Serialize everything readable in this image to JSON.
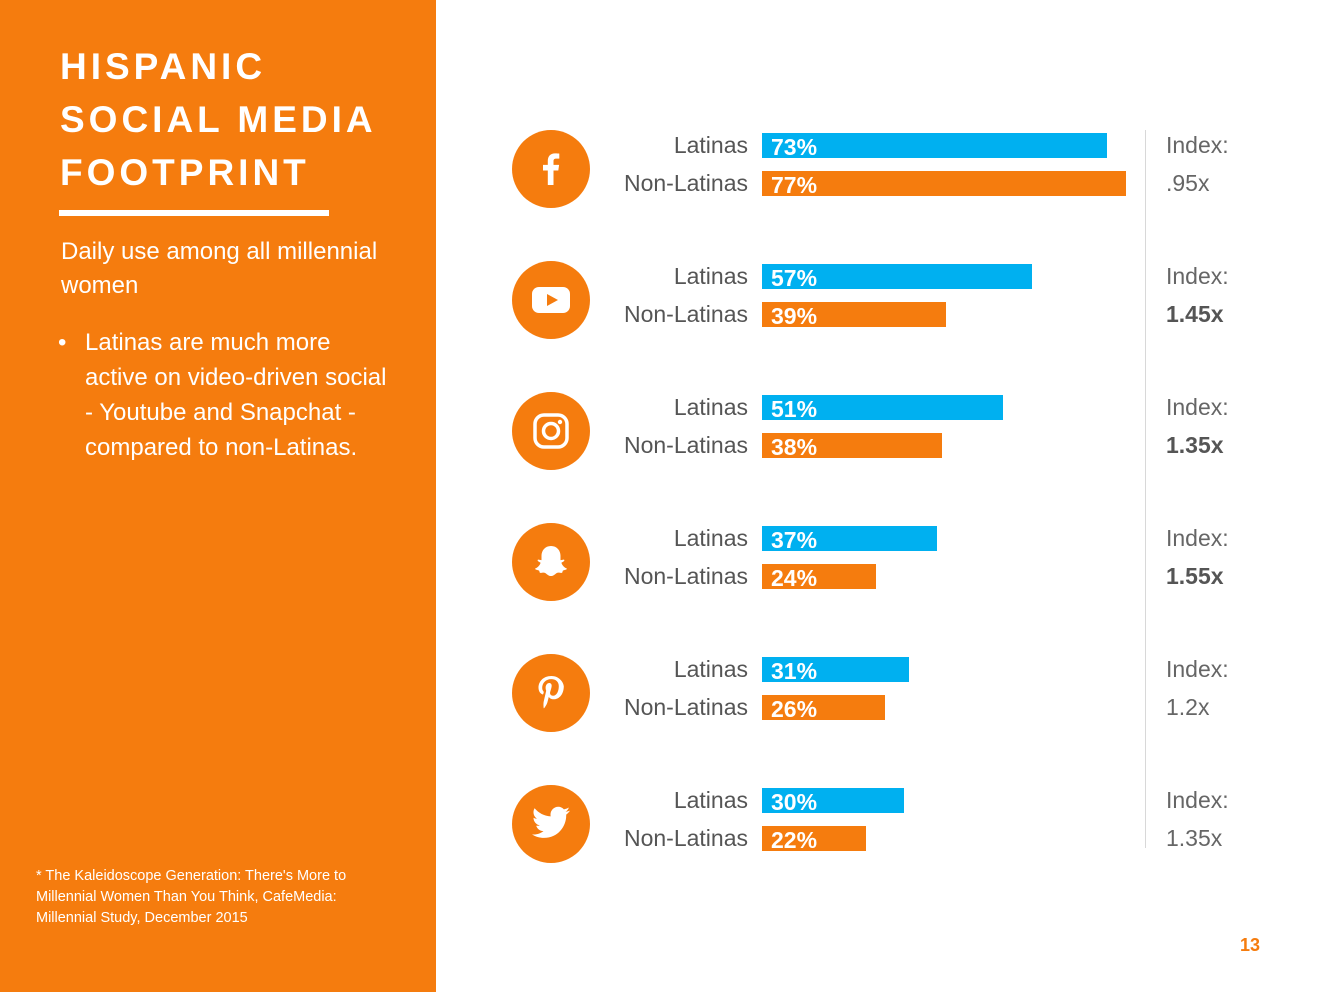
{
  "sidebar": {
    "title_lines": [
      "HISPANIC",
      "SOCIAL MEDIA",
      "FOOTPRINT"
    ],
    "subtitle": "Daily use among all millennial women",
    "bullet": "Latinas are much more active on video-driven social - Youtube and Snapchat - compared to non-Latinas.",
    "bullet_marker": "•",
    "footnote": "* The Kaleidoscope Generation: There's More to Millennial Women Than You Think, CafeMedia: Millennial Study, December 2015"
  },
  "page_number": "13",
  "colors": {
    "accent_orange": "#f57c0e",
    "latinas_blue": "#00b0f0",
    "non_latinas_orange": "#f57c0e"
  },
  "chart_data": {
    "type": "bar",
    "orientation": "horizontal",
    "unit": "%",
    "xlim": [
      0,
      100
    ],
    "series_names": [
      "Latinas",
      "Non-Latinas"
    ],
    "index_label": "Index:",
    "rows": [
      {
        "platform": "facebook",
        "icon": "facebook-icon",
        "latinas": 73,
        "latinas_label": "73%",
        "non_latinas": 77,
        "non_latinas_label": "77%",
        "index": ".95x",
        "index_bold": false
      },
      {
        "platform": "youtube",
        "icon": "youtube-icon",
        "latinas": 57,
        "latinas_label": "57%",
        "non_latinas": 39,
        "non_latinas_label": "39%",
        "index": "1.45x",
        "index_bold": true
      },
      {
        "platform": "instagram",
        "icon": "instagram-icon",
        "latinas": 51,
        "latinas_label": "51%",
        "non_latinas": 38,
        "non_latinas_label": "38%",
        "index": "1.35x",
        "index_bold": true
      },
      {
        "platform": "snapchat",
        "icon": "snapchat-icon",
        "latinas": 37,
        "latinas_label": "37%",
        "non_latinas": 24,
        "non_latinas_label": "24%",
        "index": "1.55x",
        "index_bold": true
      },
      {
        "platform": "pinterest",
        "icon": "pinterest-icon",
        "latinas": 31,
        "latinas_label": "31%",
        "non_latinas": 26,
        "non_latinas_label": "26%",
        "index": "1.2x",
        "index_bold": false
      },
      {
        "platform": "twitter",
        "icon": "twitter-icon",
        "latinas": 30,
        "latinas_label": "30%",
        "non_latinas": 22,
        "non_latinas_label": "22%",
        "index": "1.35x",
        "index_bold": false
      }
    ]
  }
}
